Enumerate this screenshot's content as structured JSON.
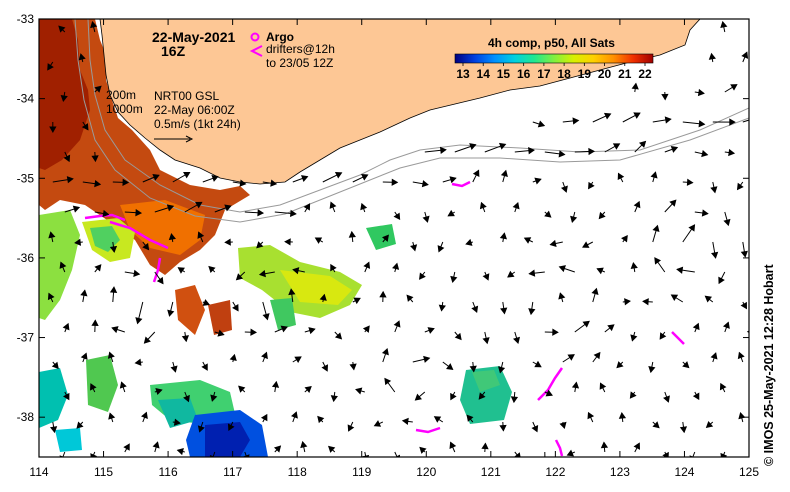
{
  "header": {
    "date": "22-May-2021",
    "time": "16Z"
  },
  "legend_argo": {
    "marker": "circle-star-icon",
    "label": "Argo",
    "drifters_line1": "drifters@12h",
    "drifters_line2": "to 23/05 12Z"
  },
  "altimetry_note": {
    "depth1": "200m",
    "depth2": "1000m",
    "line1": "NRT00 GSL",
    "line2": "22-May 06:00Z",
    "line3": "0.5m/s (1kt 24h)"
  },
  "colorbar": {
    "title": "4h comp, p50, All Sats",
    "ticks": [
      "13",
      "14",
      "15",
      "16",
      "17",
      "18",
      "19",
      "20",
      "21",
      "22"
    ],
    "colors": [
      "#000080",
      "#0020c0",
      "#0060ff",
      "#00a8ff",
      "#00d8d0",
      "#30e890",
      "#90f040",
      "#e0f000",
      "#ffc000",
      "#ff7000",
      "#e02000",
      "#a00000"
    ]
  },
  "credit": "© IMOS 25-May-2021 12:28 Hobart",
  "chart_data": {
    "type": "map",
    "x_ticks": [
      "114",
      "115",
      "116",
      "117",
      "118",
      "119",
      "120",
      "121",
      "122",
      "123",
      "124",
      "125"
    ],
    "y_ticks": [
      "-33",
      "-34",
      "-35",
      "-36",
      "-37",
      "-38"
    ],
    "xlim": [
      114,
      125
    ],
    "ylim": [
      -38.5,
      -33
    ],
    "land_color": "#fdc795",
    "arrow_color": "#000000",
    "drifter_color": "#ff00ff"
  }
}
